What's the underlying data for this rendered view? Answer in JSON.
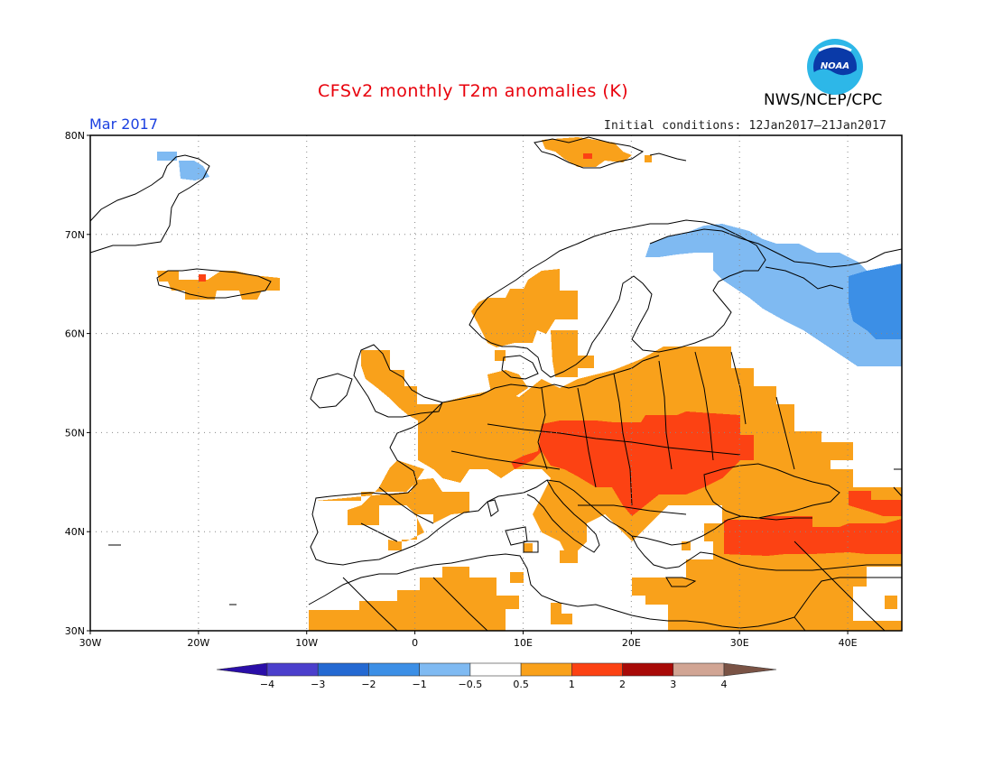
{
  "header": {
    "title": "CFSv2 monthly T2m anomalies (K)",
    "agency": "NWS/NCEP/CPC",
    "month": "Mar 2017",
    "initial_conditions": "Initial conditions: 12Jan2017–21Jan2017",
    "logo_text": "NOAA"
  },
  "map": {
    "lat_labels": [
      "80N",
      "70N",
      "60N",
      "50N",
      "40N",
      "30N"
    ],
    "lon_labels": [
      "30W",
      "20W",
      "10W",
      "0",
      "10E",
      "20E",
      "30E",
      "40E"
    ],
    "lat_values": [
      80,
      70,
      60,
      50,
      40,
      30
    ],
    "lon_values": [
      -30,
      -20,
      -10,
      0,
      10,
      20,
      30,
      40
    ],
    "extent": {
      "lon_min": -30,
      "lon_max": 45,
      "lat_min": 30,
      "lat_max": 80
    },
    "grid": "dotted"
  },
  "anomaly_regions": [
    {
      "name": "central-europe-warm",
      "category": "1 to 2"
    },
    {
      "name": "turkey-warm",
      "category": "1 to 2"
    },
    {
      "name": "caucasus-warm",
      "category": "1 to 2"
    },
    {
      "name": "europe-broad-warm",
      "category": "0.5 to 1"
    },
    {
      "name": "iberia-france-warm",
      "category": "0.5 to 1"
    },
    {
      "name": "north-africa-warm",
      "category": "0.5 to 1"
    },
    {
      "name": "scandinavia-coast-warm",
      "category": "0.5 to 1"
    },
    {
      "name": "iceland-warm",
      "category": "0.5 to 1"
    },
    {
      "name": "svalbard-warm",
      "category": "0.5 to 1"
    },
    {
      "name": "northwest-russia-cold",
      "category": "-1 to -0.5"
    },
    {
      "name": "greenland-cold",
      "category": "-1 to -0.5"
    },
    {
      "name": "urals-cold",
      "category": "-2 to -1"
    }
  ],
  "colorbar": {
    "labels": [
      "−4",
      "−3",
      "−2",
      "−1",
      "−0.5",
      "0.5",
      "1",
      "2",
      "3",
      "4"
    ],
    "colors": [
      "#2a0ea8",
      "#4b3fcc",
      "#2469d2",
      "#3c8fe6",
      "#7fbaf2",
      "#ffffff",
      "#f9a11b",
      "#fc4213",
      "#a80a08",
      "#d1a594",
      "#7a5345"
    ]
  }
}
